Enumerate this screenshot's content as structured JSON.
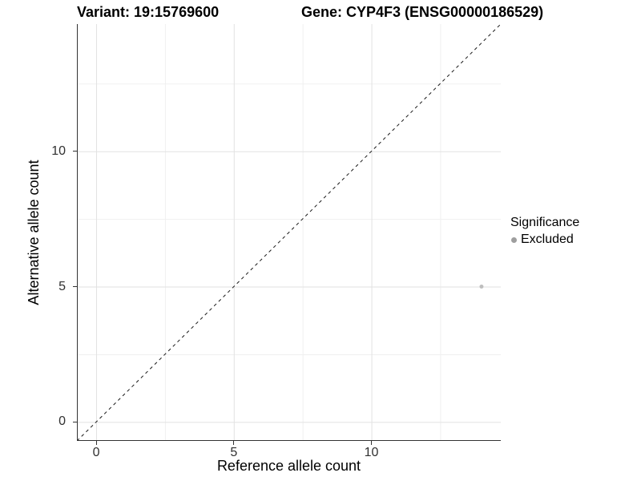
{
  "title": {
    "left": "Variant: 19:15769600",
    "right": "Gene: CYP4F3 (ENSG00000186529)"
  },
  "axes": {
    "x_label": "Reference allele count",
    "y_label": "Alternative allele count"
  },
  "legend": {
    "title": "Significance",
    "entries": [
      {
        "label": "Excluded",
        "color": "#9e9e9e"
      }
    ]
  },
  "chart_data": {
    "type": "scatter",
    "title": "Variant: 19:15769600 / Gene: CYP4F3 (ENSG00000186529)",
    "xlabel": "Reference allele count",
    "ylabel": "Alternative allele count",
    "xlim": [
      -0.7,
      14.7
    ],
    "ylim": [
      -0.7,
      14.7
    ],
    "x_ticks": [
      0,
      5,
      10
    ],
    "y_ticks": [
      0,
      5,
      10
    ],
    "x_minor_ticks": [
      2.5,
      7.5,
      12.5
    ],
    "y_minor_ticks": [
      2.5,
      7.5,
      12.5
    ],
    "grid": "major and minor gridlines, light gray on white panel",
    "legend_position": "right",
    "legend_title": "Significance",
    "series": [
      {
        "name": "Excluded",
        "color": "#bebebe",
        "point_radius": 2.5,
        "points": [
          {
            "x": 14,
            "y": 5
          }
        ]
      }
    ],
    "reference_line": {
      "type": "identity y = x",
      "style": "dashed",
      "color": "#1a1a1a"
    },
    "style_colors": {
      "grid_major": "#e2e2e2",
      "grid_minor": "#f0f0f0",
      "axis_line": "#333333",
      "tick_text": "#303030"
    }
  }
}
